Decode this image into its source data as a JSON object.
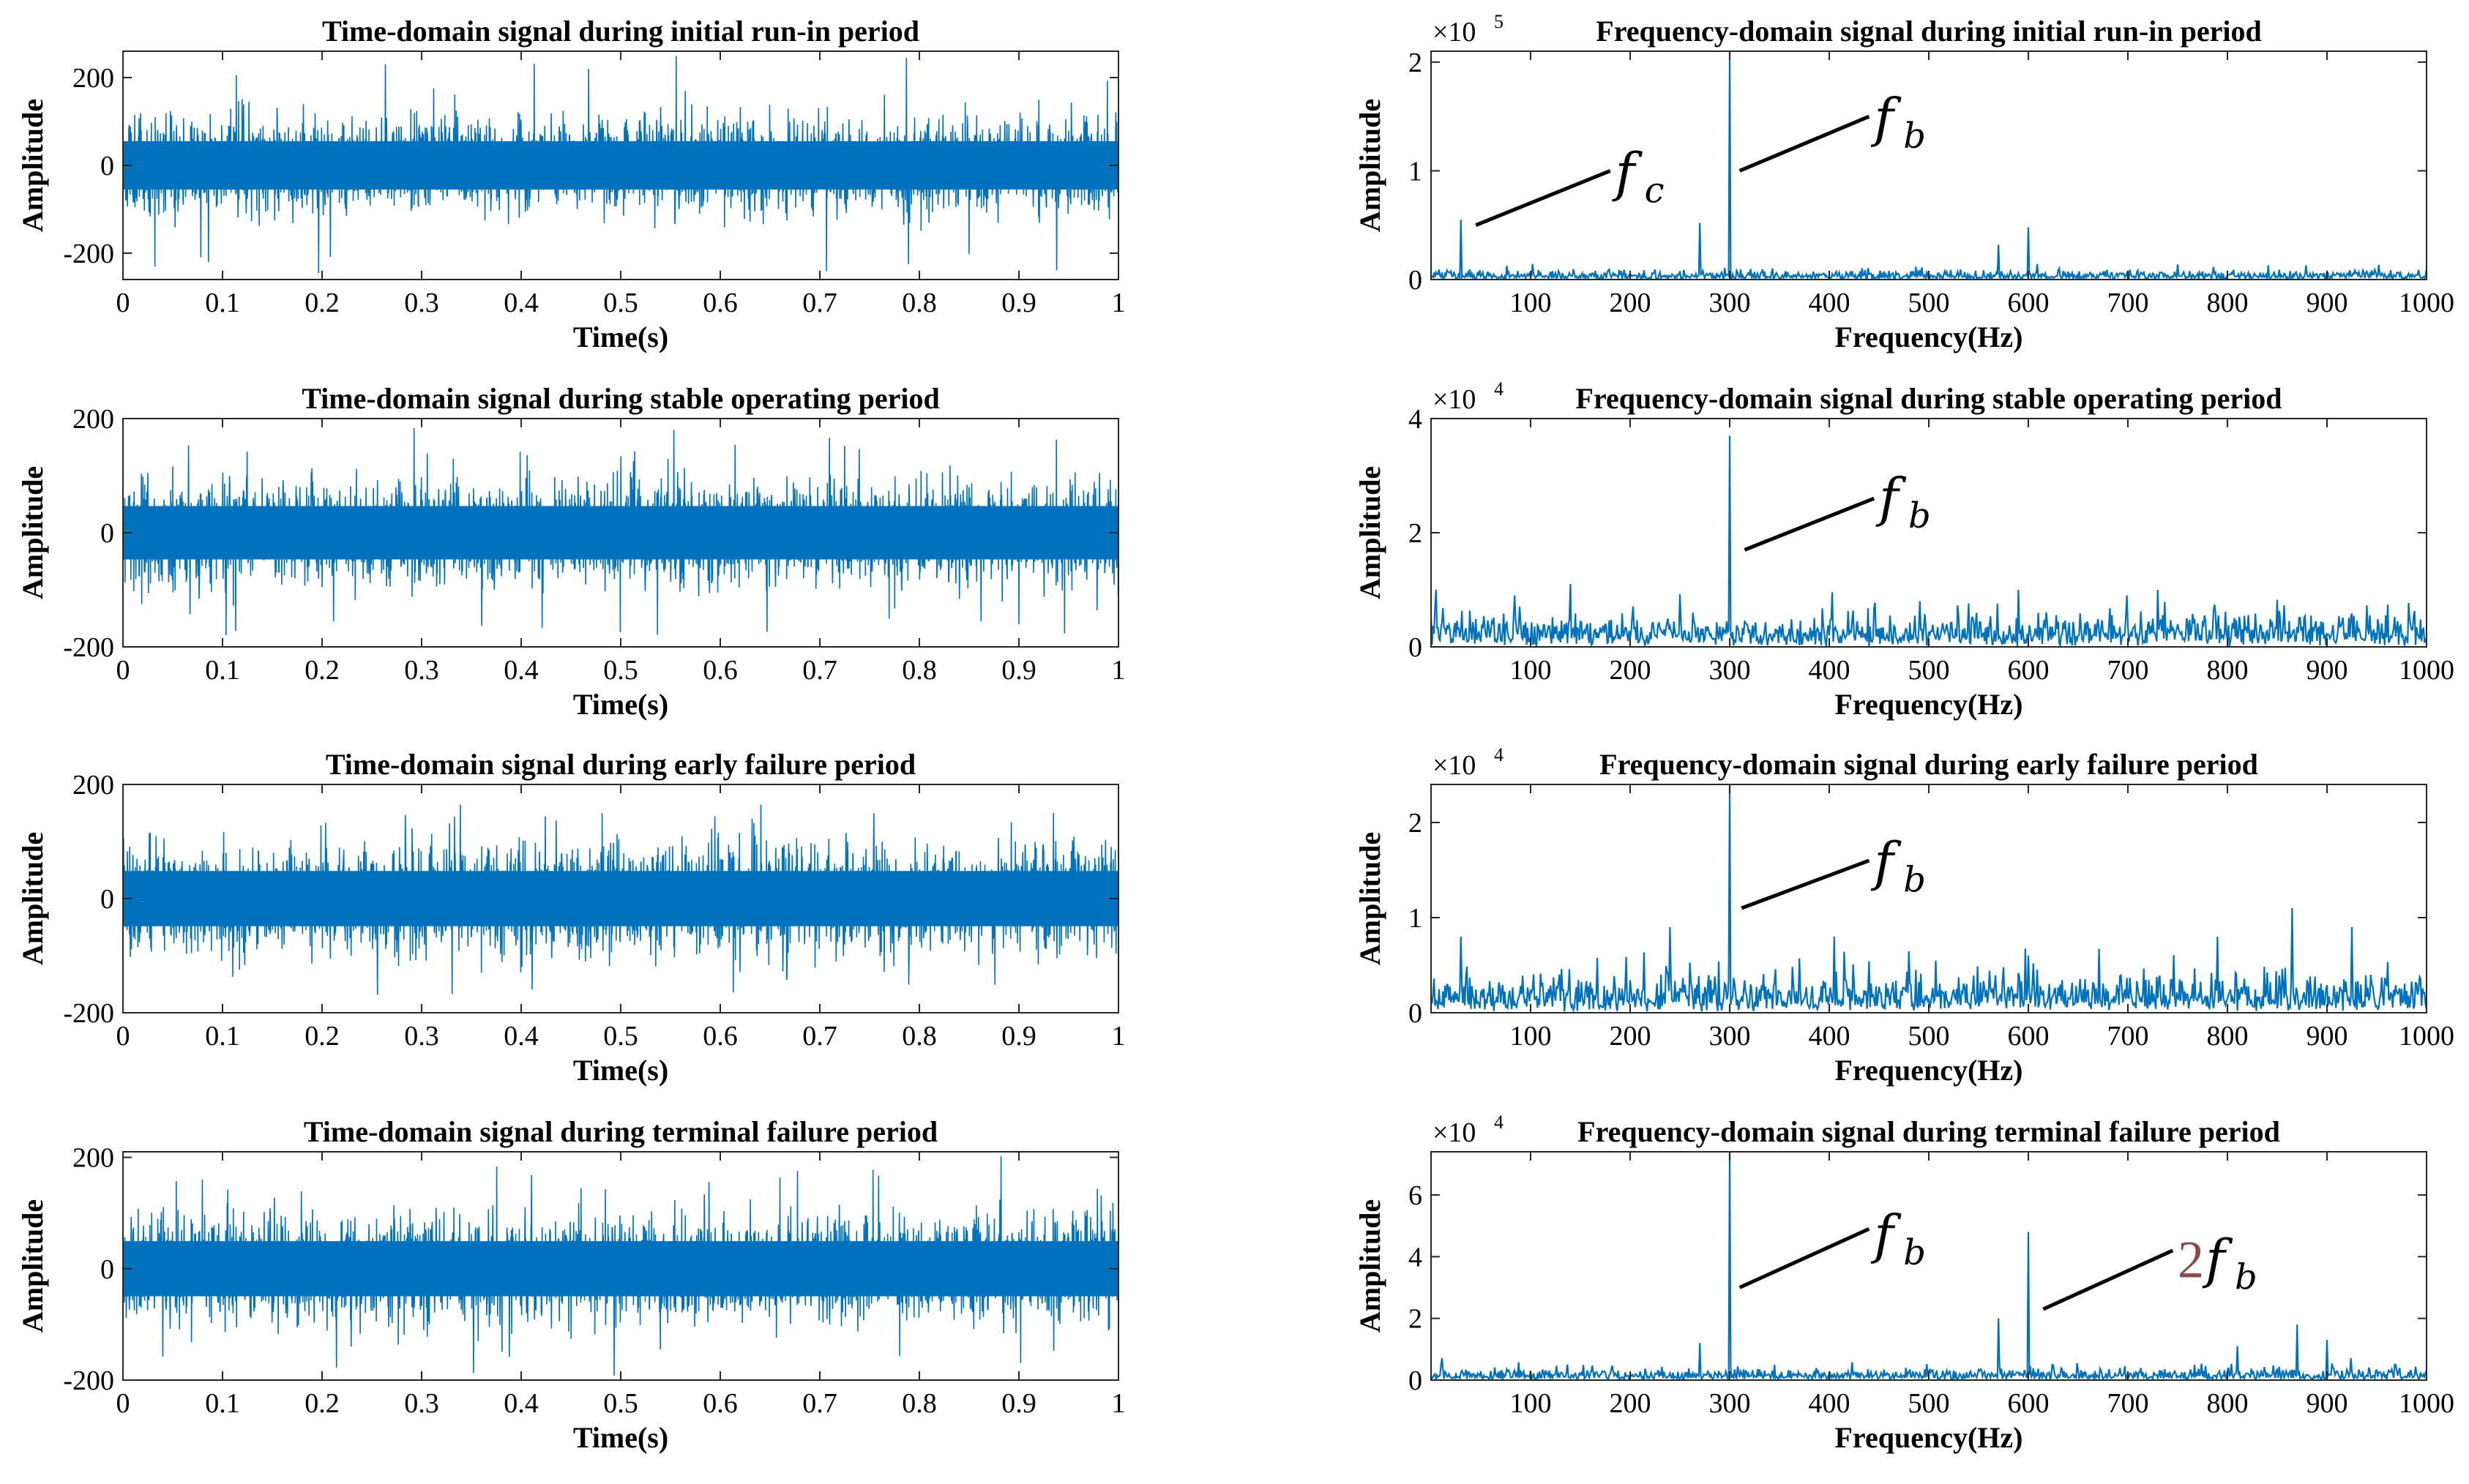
{
  "chart_data": [
    {
      "type": "line",
      "title": "Time-domain signal during initial run-in period",
      "xlabel": "Time(s)",
      "ylabel": "Amplitude",
      "xlim": [
        0,
        1
      ],
      "ylim": [
        -260,
        260
      ],
      "xticks": [
        "0",
        "0.1",
        "0.2",
        "0.3",
        "0.4",
        "0.5",
        "0.6",
        "0.7",
        "0.8",
        "0.9",
        "1"
      ],
      "yticks": [
        {
          "v": -200,
          "label": "-200"
        },
        {
          "v": 0,
          "label": "0"
        },
        {
          "v": 200,
          "label": "200"
        }
      ],
      "signal": {
        "kind": "time",
        "band": 100,
        "peak": 255,
        "seed": 11
      },
      "color": "#0072BD"
    },
    {
      "type": "line",
      "title": "Frequency-domain signal during initial run-in period",
      "xlabel": "Frequency(Hz)",
      "ylabel": "Amplitude",
      "multiplier_base": "×10",
      "multiplier_exp": "5",
      "xlim": [
        0,
        1000
      ],
      "ylim": [
        0,
        2.1
      ],
      "xticks": [
        "100",
        "200",
        "300",
        "400",
        "500",
        "600",
        "700",
        "800",
        "900",
        "1000"
      ],
      "yticks": [
        {
          "v": 0,
          "label": "0"
        },
        {
          "v": 1,
          "label": "1"
        },
        {
          "v": 2,
          "label": "2"
        }
      ],
      "signal": {
        "kind": "freq",
        "noise": 0.08,
        "seed": 21,
        "peaks": [
          {
            "f": 30,
            "a": 0.55
          },
          {
            "f": 270,
            "a": 0.52
          },
          {
            "f": 300,
            "a": 2.1
          },
          {
            "f": 570,
            "a": 0.32
          },
          {
            "f": 600,
            "a": 0.48
          }
        ]
      },
      "annotations": [
        {
          "pre": "",
          "main": "f",
          "sub": "c",
          "line": [
            [
              45,
              0.5
            ],
            [
              180,
              1.0
            ]
          ],
          "text_at": [
            185,
            0.98
          ]
        },
        {
          "pre": "",
          "main": "f",
          "sub": "b",
          "line": [
            [
              310,
              1.0
            ],
            [
              440,
              1.5
            ]
          ],
          "text_at": [
            445,
            1.48
          ]
        }
      ],
      "color": "#0072BD"
    },
    {
      "type": "line",
      "title": "Time-domain signal during stable operating period",
      "xlabel": "Time(s)",
      "ylabel": "Amplitude",
      "xlim": [
        0,
        1
      ],
      "ylim": [
        -200,
        200
      ],
      "xticks": [
        "0",
        "0.1",
        "0.2",
        "0.3",
        "0.4",
        "0.5",
        "0.6",
        "0.7",
        "0.8",
        "0.9",
        "1"
      ],
      "yticks": [
        {
          "v": -200,
          "label": "-200"
        },
        {
          "v": 0,
          "label": "0"
        },
        {
          "v": 200,
          "label": "200"
        }
      ],
      "signal": {
        "kind": "time",
        "band": 85,
        "peak": 185,
        "seed": 33
      },
      "color": "#0072BD"
    },
    {
      "type": "line",
      "title": "Frequency-domain signal during stable operating period",
      "xlabel": "Frequency(Hz)",
      "ylabel": "Amplitude",
      "multiplier_base": "×10",
      "multiplier_exp": "4",
      "xlim": [
        0,
        1000
      ],
      "ylim": [
        0,
        4
      ],
      "xticks": [
        "100",
        "200",
        "300",
        "400",
        "500",
        "600",
        "700",
        "800",
        "900",
        "1000"
      ],
      "yticks": [
        {
          "v": 0,
          "label": "0"
        },
        {
          "v": 2,
          "label": "2"
        },
        {
          "v": 4,
          "label": "4"
        }
      ],
      "signal": {
        "kind": "freq",
        "noise": 0.55,
        "seed": 41,
        "peaks": [
          {
            "f": 5,
            "a": 1.0
          },
          {
            "f": 140,
            "a": 1.1
          },
          {
            "f": 300,
            "a": 3.7
          },
          {
            "f": 590,
            "a": 1.0
          },
          {
            "f": 730,
            "a": 1.0
          }
        ]
      },
      "annotations": [
        {
          "pre": "",
          "main": "f",
          "sub": "b",
          "line": [
            [
              315,
              1.7
            ],
            [
              445,
              2.6
            ]
          ],
          "text_at": [
            450,
            2.6
          ]
        }
      ],
      "color": "#0072BD"
    },
    {
      "type": "line",
      "title": "Time-domain signal during early failure period",
      "xlabel": "Time(s)",
      "ylabel": "Amplitude",
      "xlim": [
        0,
        1
      ],
      "ylim": [
        -200,
        200
      ],
      "xticks": [
        "0",
        "0.1",
        "0.2",
        "0.3",
        "0.4",
        "0.5",
        "0.6",
        "0.7",
        "0.8",
        "0.9",
        "1"
      ],
      "yticks": [
        {
          "v": -200,
          "label": "-200"
        },
        {
          "v": 0,
          "label": "0"
        },
        {
          "v": 200,
          "label": "200"
        }
      ],
      "signal": {
        "kind": "time",
        "band": 88,
        "peak": 170,
        "seed": 55
      },
      "color": "#0072BD"
    },
    {
      "type": "line",
      "title": "Frequency-domain signal during early failure period",
      "xlabel": "Frequency(Hz)",
      "ylabel": "Amplitude",
      "multiplier_base": "×10",
      "multiplier_exp": "4",
      "xlim": [
        0,
        1000
      ],
      "ylim": [
        0,
        2.4
      ],
      "xticks": [
        "100",
        "200",
        "300",
        "400",
        "500",
        "600",
        "700",
        "800",
        "900",
        "1000"
      ],
      "yticks": [
        {
          "v": 0,
          "label": "0"
        },
        {
          "v": 1,
          "label": "1"
        },
        {
          "v": 2,
          "label": "2"
        }
      ],
      "signal": {
        "kind": "freq",
        "noise": 0.38,
        "seed": 61,
        "peaks": [
          {
            "f": 30,
            "a": 0.8
          },
          {
            "f": 240,
            "a": 0.9
          },
          {
            "f": 300,
            "a": 2.4
          },
          {
            "f": 405,
            "a": 0.8
          },
          {
            "f": 600,
            "a": 0.6
          },
          {
            "f": 790,
            "a": 0.8
          },
          {
            "f": 865,
            "a": 1.1
          },
          {
            "f": 925,
            "a": 0.9
          }
        ]
      },
      "annotations": [
        {
          "pre": "",
          "main": "f",
          "sub": "b",
          "line": [
            [
              312,
              1.1
            ],
            [
              440,
              1.6
            ]
          ],
          "text_at": [
            445,
            1.58
          ]
        }
      ],
      "color": "#0072BD"
    },
    {
      "type": "line",
      "title": "Time-domain signal during terminal failure period",
      "xlabel": "Time(s)",
      "ylabel": "Amplitude",
      "xlim": [
        0,
        1
      ],
      "ylim": [
        -200,
        210
      ],
      "xticks": [
        "0",
        "0.1",
        "0.2",
        "0.3",
        "0.4",
        "0.5",
        "0.6",
        "0.7",
        "0.8",
        "0.9",
        "1"
      ],
      "yticks": [
        {
          "v": -200,
          "label": "-200"
        },
        {
          "v": 0,
          "label": "0"
        },
        {
          "v": 200,
          "label": "200"
        }
      ],
      "signal": {
        "kind": "time",
        "band": 90,
        "peak": 205,
        "seed": 77
      },
      "color": "#0072BD"
    },
    {
      "type": "line",
      "title": "Frequency-domain signal during terminal failure period",
      "xlabel": "Frequency(Hz)",
      "ylabel": "Amplitude",
      "multiplier_base": "×10",
      "multiplier_exp": "4",
      "xlim": [
        0,
        1000
      ],
      "ylim": [
        0,
        7.4
      ],
      "xticks": [
        "100",
        "200",
        "300",
        "400",
        "500",
        "600",
        "700",
        "800",
        "900",
        "1000"
      ],
      "yticks": [
        {
          "v": 0,
          "label": "0"
        },
        {
          "v": 2,
          "label": "2"
        },
        {
          "v": 4,
          "label": "4"
        },
        {
          "v": 6,
          "label": "6"
        }
      ],
      "signal": {
        "kind": "freq",
        "noise": 0.35,
        "seed": 83,
        "peaks": [
          {
            "f": 270,
            "a": 1.2
          },
          {
            "f": 300,
            "a": 7.4
          },
          {
            "f": 570,
            "a": 2.0
          },
          {
            "f": 600,
            "a": 4.8
          },
          {
            "f": 810,
            "a": 1.1
          },
          {
            "f": 870,
            "a": 1.8
          },
          {
            "f": 900,
            "a": 1.3
          }
        ]
      },
      "annotations": [
        {
          "pre": "",
          "main": "f",
          "sub": "b",
          "line": [
            [
              310,
              3.0
            ],
            [
              440,
              4.9
            ]
          ],
          "text_at": [
            445,
            4.7
          ]
        },
        {
          "pre": "2",
          "main": "f",
          "sub": "b",
          "line": [
            [
              615,
              2.3
            ],
            [
              745,
              4.2
            ]
          ],
          "text_at": [
            750,
            3.9
          ]
        }
      ],
      "color": "#0072BD"
    }
  ]
}
